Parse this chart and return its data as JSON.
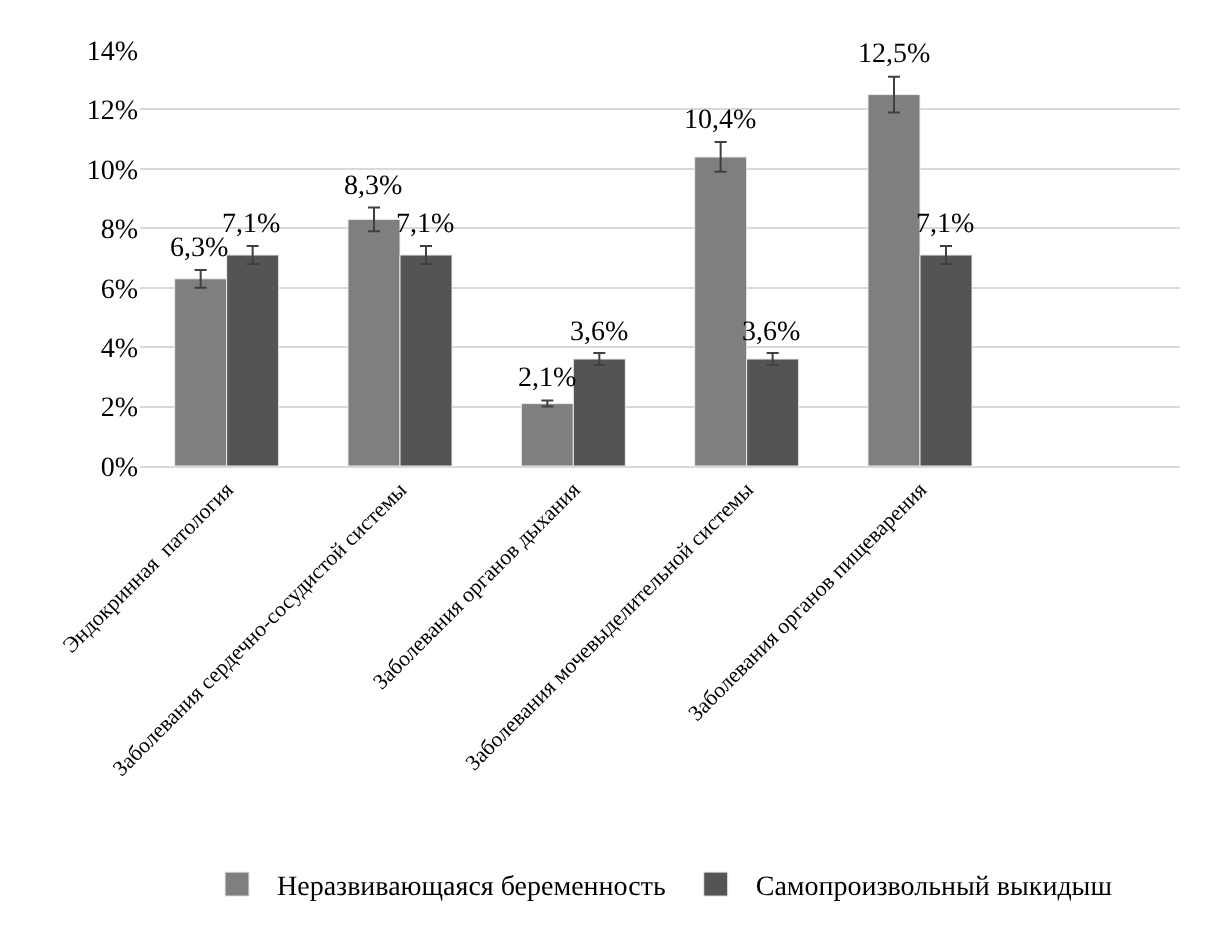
{
  "chart_data": {
    "type": "bar",
    "categories": [
      "Эндокринная  патология",
      "Заболевания сердечно-сосудистой системы",
      "Заболевания органов дыхания",
      "Заболевания мочевыделительной системы",
      "Заболевания органов пищеварения",
      null
    ],
    "series": [
      {
        "name": "Неразвивающаяся беременность",
        "color": "#7f7f7f",
        "values": [
          6.3,
          8.3,
          2.1,
          10.4,
          12.5,
          null
        ],
        "errors": [
          0.3,
          0.4,
          0.1,
          0.5,
          0.6,
          null
        ],
        "value_labels": [
          "6,3%",
          "8,3%",
          "2,1%",
          "10,4%",
          "12,5%",
          null
        ]
      },
      {
        "name": "Самопроизвольный выкидыш",
        "color": "#545454",
        "values": [
          7.1,
          7.1,
          3.6,
          3.6,
          7.1,
          null
        ],
        "errors": [
          0.3,
          0.3,
          0.2,
          0.2,
          0.3,
          null
        ],
        "value_labels": [
          "7,1%",
          "7,1%",
          "3,6%",
          "3,6%",
          "7,1%",
          null
        ]
      }
    ],
    "ylim": [
      0,
      14
    ],
    "yticks": [
      {
        "value": 0,
        "label": "0%"
      },
      {
        "value": 2,
        "label": "2%"
      },
      {
        "value": 4,
        "label": "4%"
      },
      {
        "value": 6,
        "label": "6%"
      },
      {
        "value": 8,
        "label": "8%"
      },
      {
        "value": 10,
        "label": "10%"
      },
      {
        "value": 12,
        "label": "12%"
      },
      {
        "value": 14,
        "label": "14%"
      }
    ],
    "grid": "y",
    "legend": "bottom"
  }
}
